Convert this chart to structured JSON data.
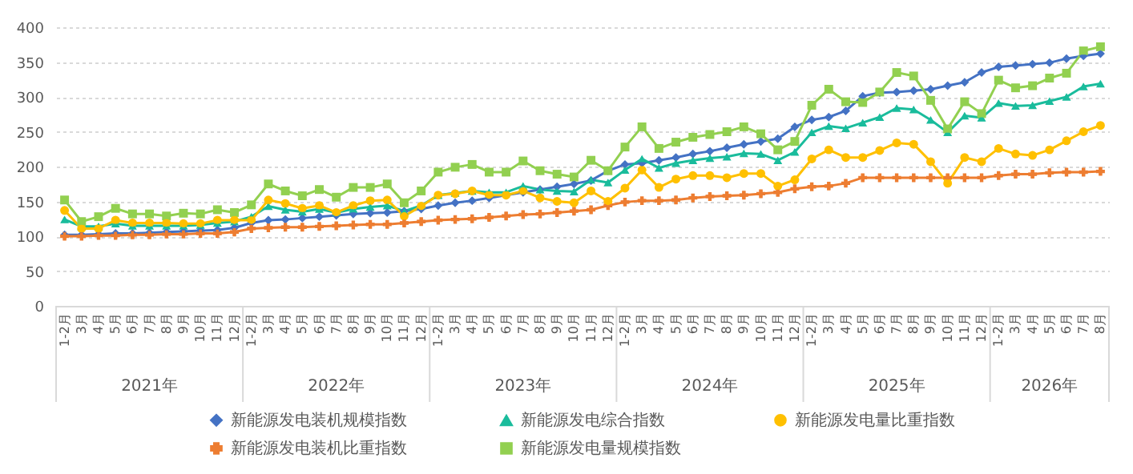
{
  "chart_data": {
    "type": "line",
    "categories": [
      "1-2月",
      "3月",
      "4月",
      "5月",
      "6月",
      "7月",
      "8月",
      "9月",
      "10月",
      "11月",
      "12月",
      "1-2月",
      "3月",
      "4月",
      "5月",
      "6月",
      "7月",
      "8月",
      "9月",
      "10月",
      "11月",
      "12月",
      "1-2月",
      "3月",
      "4月",
      "5月",
      "6月",
      "7月",
      "8月",
      "9月",
      "10月",
      "11月",
      "12月",
      "1-2月",
      "3月",
      "4月",
      "5月",
      "6月",
      "7月",
      "8月",
      "9月",
      "10月",
      "11月",
      "12月",
      "1-2月",
      "3月",
      "4月",
      "5月",
      "6月",
      "7月",
      "8月",
      "9月",
      "10月",
      "11月",
      "12月",
      "1-2月",
      "3月",
      "4月",
      "5月",
      "6月",
      "7月",
      "8月"
    ],
    "series": [
      {
        "name": "新能源发电装机规模指数",
        "color": "#4472c4",
        "marker": "diamond",
        "values": [
          102,
          102,
          103,
          104,
          104,
          105,
          106,
          107,
          108,
          109,
          112,
          119,
          123,
          124,
          126,
          128,
          130,
          132,
          133,
          134,
          136,
          139,
          144,
          148,
          151,
          155,
          159,
          163,
          167,
          171,
          175,
          180,
          194,
          203,
          205,
          209,
          213,
          218,
          222,
          227,
          232,
          236,
          240,
          257,
          267,
          271,
          280,
          301,
          306,
          307,
          309,
          311,
          316,
          321,
          335,
          343,
          345,
          347,
          349,
          355,
          359,
          362
        ]
      },
      {
        "name": "新能源发电装机比重指数",
        "color": "#ed7d31",
        "marker": "cross",
        "values": [
          100,
          100,
          101,
          101,
          102,
          102,
          103,
          103,
          104,
          104,
          106,
          111,
          112,
          113,
          113,
          114,
          115,
          116,
          117,
          117,
          119,
          121,
          123,
          124,
          125,
          127,
          129,
          131,
          132,
          134,
          136,
          138,
          144,
          149,
          151,
          151,
          152,
          155,
          157,
          158,
          159,
          161,
          163,
          168,
          171,
          172,
          176,
          184,
          184,
          184,
          184,
          184,
          184,
          184,
          184,
          187,
          189,
          189,
          191,
          192,
          192,
          193
        ]
      },
      {
        "name": "新能源发电综合指数",
        "color": "#1abc9c",
        "marker": "triangle",
        "values": [
          124,
          114,
          114,
          118,
          115,
          115,
          115,
          115,
          116,
          119,
          121,
          128,
          143,
          138,
          135,
          139,
          134,
          139,
          142,
          144,
          136,
          144,
          159,
          162,
          165,
          163,
          163,
          172,
          167,
          165,
          164,
          181,
          177,
          195,
          211,
          198,
          205,
          209,
          212,
          214,
          219,
          218,
          209,
          221,
          249,
          258,
          255,
          263,
          271,
          284,
          282,
          267,
          249,
          273,
          270,
          291,
          287,
          288,
          294,
          300,
          315,
          319
        ]
      },
      {
        "name": "新能源发电量规模指数",
        "color": "#92d050",
        "marker": "square",
        "values": [
          152,
          121,
          128,
          140,
          132,
          132,
          129,
          133,
          132,
          138,
          134,
          145,
          175,
          165,
          158,
          167,
          156,
          170,
          170,
          175,
          148,
          165,
          192,
          199,
          203,
          192,
          192,
          208,
          194,
          189,
          185,
          209,
          194,
          228,
          257,
          226,
          235,
          242,
          246,
          250,
          257,
          247,
          224,
          236,
          288,
          311,
          293,
          292,
          307,
          335,
          330,
          295,
          254,
          293,
          276,
          324,
          313,
          316,
          327,
          334,
          366,
          372
        ]
      },
      {
        "name": "新能源发电量比重指数",
        "color": "#ffc000",
        "marker": "circle",
        "values": [
          137,
          111,
          111,
          123,
          119,
          119,
          119,
          118,
          118,
          123,
          123,
          123,
          152,
          147,
          140,
          144,
          134,
          144,
          151,
          152,
          129,
          143,
          159,
          161,
          165,
          159,
          159,
          165,
          155,
          150,
          148,
          165,
          150,
          169,
          195,
          170,
          182,
          187,
          187,
          184,
          190,
          190,
          172,
          181,
          211,
          224,
          213,
          213,
          223,
          234,
          232,
          207,
          176,
          213,
          207,
          226,
          218,
          216,
          224,
          237,
          250,
          259
        ]
      }
    ],
    "ylim": [
      0,
      400
    ],
    "yticks": [
      0,
      50,
      100,
      150,
      200,
      250,
      300,
      350,
      400
    ],
    "grid": "y",
    "legend": "bottom",
    "annotations": [
      "2021年",
      "2022年",
      "2023年",
      "2024年",
      "2025年",
      "2026年"
    ]
  }
}
